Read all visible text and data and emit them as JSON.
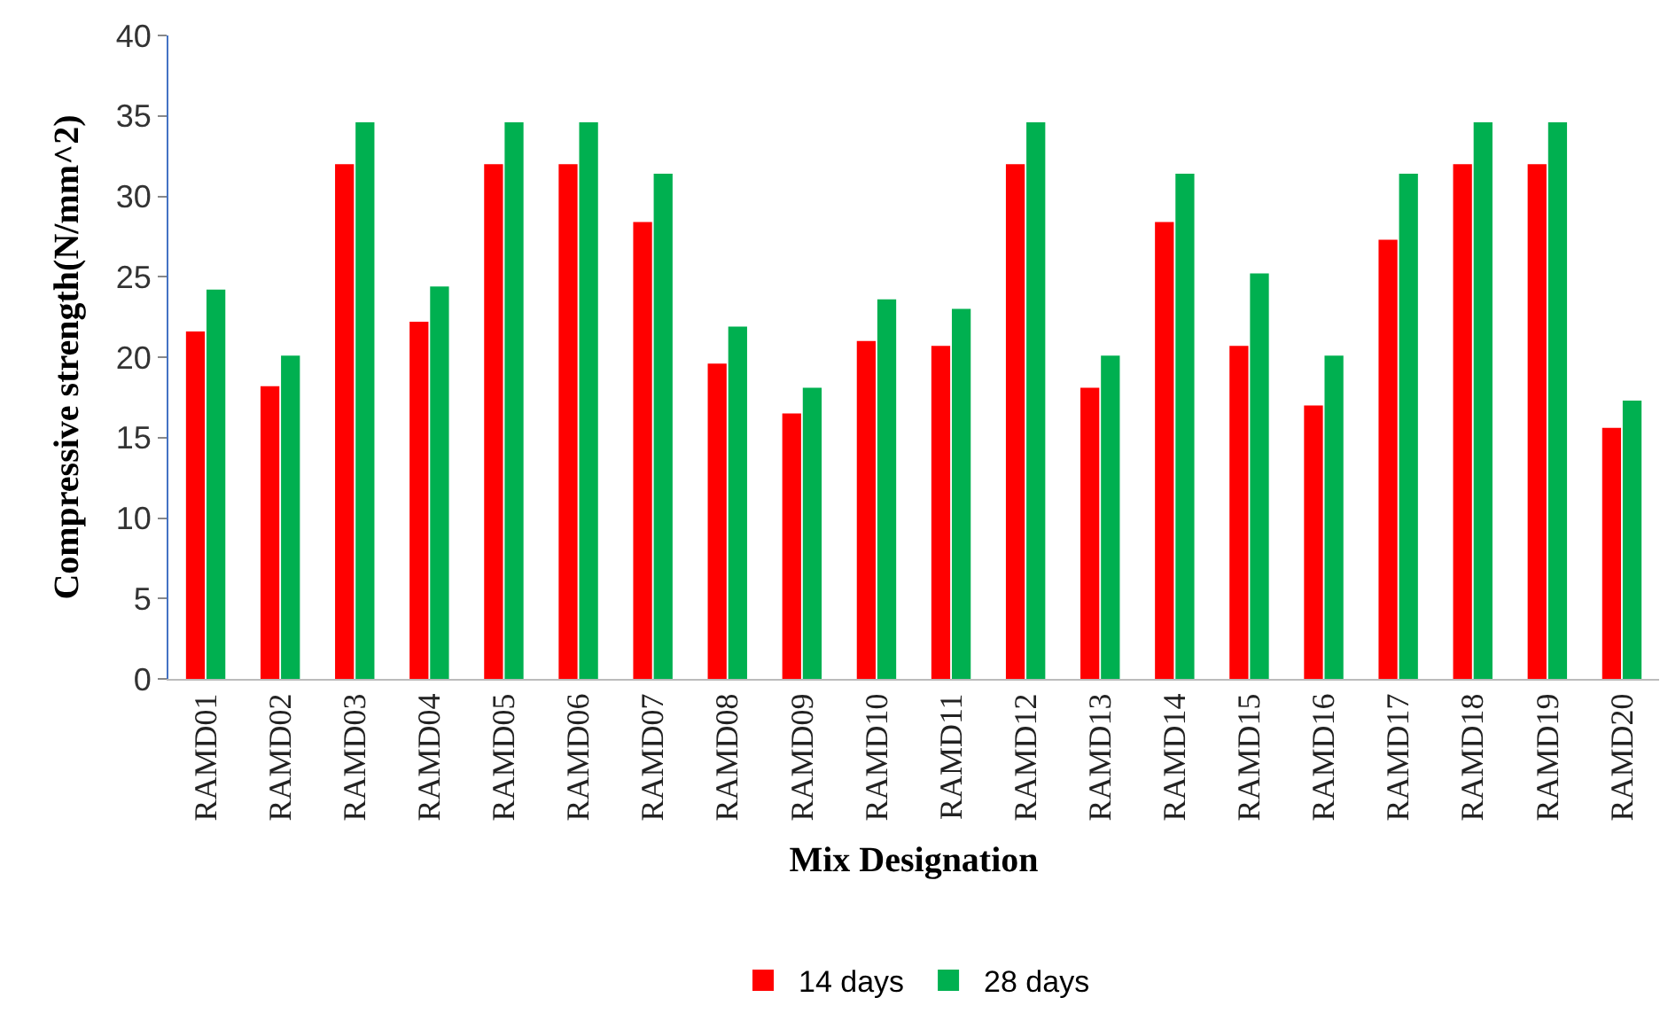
{
  "chart_data": {
    "type": "bar",
    "xlabel": "Mix Designation",
    "ylabel": "Compressive strength(N/mm^2)",
    "categories": [
      "RAMD01",
      "RAMD02",
      "RAMD03",
      "RAMD04",
      "RAMD05",
      "RAMD06",
      "RAMD07",
      "RAMD08",
      "RAMD09",
      "RAMD10",
      "RAMD11",
      "RAMD12",
      "RAMD13",
      "RAMD14",
      "RAMD15",
      "RAMD16",
      "RAMD17",
      "RAMD18",
      "RAMD19",
      "RAMD20"
    ],
    "series": [
      {
        "name": "14 days",
        "color": "#ff0000",
        "values": [
          21.6,
          18.2,
          32,
          22.2,
          32,
          32,
          28.4,
          19.6,
          16.5,
          21,
          20.7,
          32,
          18.1,
          28.4,
          20.7,
          17,
          27.3,
          32,
          32,
          15.6
        ]
      },
      {
        "name": "28 days",
        "color": "#00b050",
        "values": [
          24.2,
          20.1,
          34.6,
          24.4,
          34.6,
          34.6,
          31.4,
          21.9,
          18.1,
          23.6,
          23,
          34.6,
          20.1,
          31.4,
          25.2,
          20.1,
          31.4,
          34.6,
          34.6,
          17.3
        ]
      }
    ],
    "ylim": [
      0,
      40
    ],
    "yticks": [
      0,
      5,
      10,
      15,
      20,
      25,
      30,
      35,
      40
    ],
    "legend": "bottom"
  }
}
